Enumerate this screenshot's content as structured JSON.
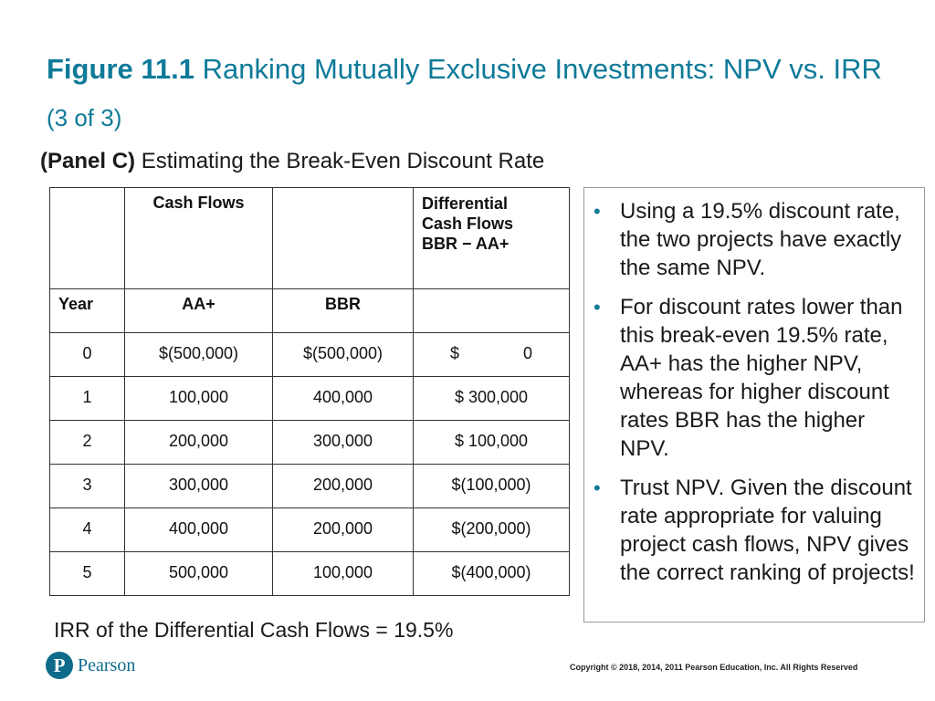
{
  "title": {
    "figure_label": "Figure 11.1",
    "text": "Ranking Mutually Exclusive Investments: NPV vs. IRR",
    "part": "(3 of 3)"
  },
  "panel": {
    "label": "(Panel C)",
    "heading": "Estimating the Break-Even Discount Rate"
  },
  "table": {
    "header_cash_flows": "Cash Flows",
    "header_differential": [
      "Differential",
      "Cash Flows",
      "BBR − AA+"
    ],
    "col_year": "Year",
    "col_aa": "AA+",
    "col_bbr": "BBR",
    "zero_row_diff": {
      "symbol": "$",
      "value": "0"
    },
    "rows": [
      {
        "year": "0",
        "aa": "$(500,000)",
        "bbr": "$(500,000)",
        "diff": ""
      },
      {
        "year": "1",
        "aa": "100,000",
        "bbr": "400,000",
        "diff": "$ 300,000"
      },
      {
        "year": "2",
        "aa": "200,000",
        "bbr": "300,000",
        "diff": "$ 100,000"
      },
      {
        "year": "3",
        "aa": "300,000",
        "bbr": "200,000",
        "diff": "$(100,000)"
      },
      {
        "year": "4",
        "aa": "400,000",
        "bbr": "200,000",
        "diff": "$(200,000)"
      },
      {
        "year": "5",
        "aa": "500,000",
        "bbr": "100,000",
        "diff": "$(400,000)"
      }
    ]
  },
  "bullets": [
    "Using a 19.5% discount rate, the two projects have exactly the same NPV.",
    "For discount rates lower than this break-even 19.5% rate, AA+ has the higher NPV, whereas for higher discount rates BBR has the higher NPV.",
    "Trust NPV. Given the discount rate appropriate for valuing project cash flows, NPV gives the correct ranking of projects!"
  ],
  "bullet_glyph": "•",
  "irr_note": "IRR of the Differential Cash Flows = 19.5%",
  "logo": {
    "glyph": "P",
    "text": "Pearson"
  },
  "copyright": "Copyright © 2018, 2014, 2011 Pearson Education, Inc. All Rights Reserved",
  "colors": {
    "accent": "#0f7a99",
    "logo": "#0e6b8a"
  }
}
